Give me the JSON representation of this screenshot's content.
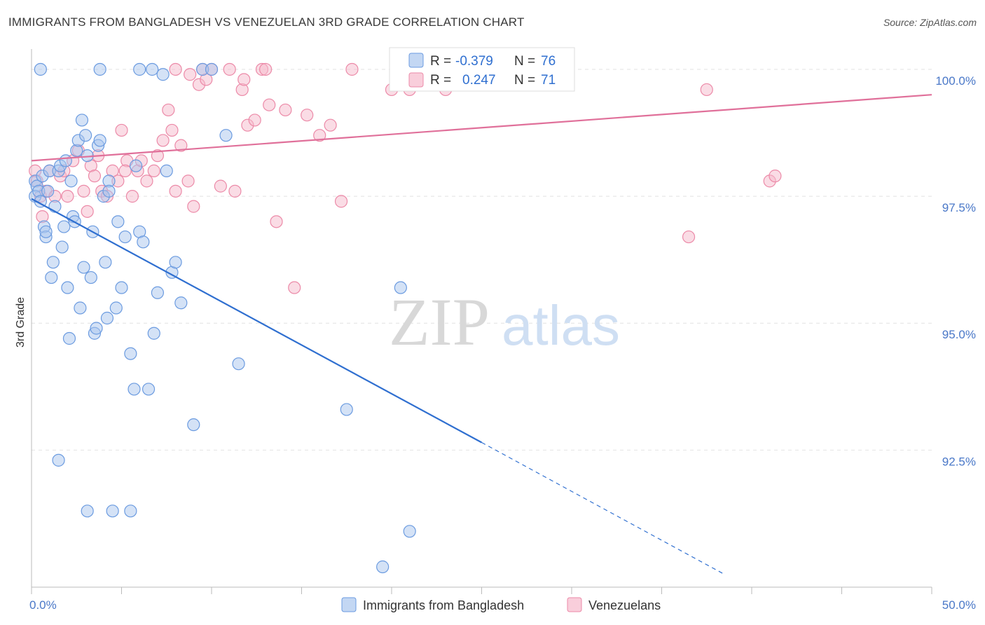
{
  "title": "IMMIGRANTS FROM BANGLADESH VS VENEZUELAN 3RD GRADE CORRELATION CHART",
  "source": "Source: ZipAtlas.com",
  "watermark": {
    "zip": "ZIP",
    "atlas": "atlas"
  },
  "colors": {
    "blue_fill": "#a9c6ee",
    "blue_stroke": "#6b9be0",
    "blue_line": "#2f6fd0",
    "pink_fill": "#f6b9cc",
    "pink_stroke": "#ec8aa8",
    "pink_line": "#e0709a",
    "accent_text": "#4a78c8"
  },
  "legend": {
    "r_label": "R =",
    "n_label": "N =",
    "rows": [
      {
        "r": "-0.379",
        "n": "76"
      },
      {
        "r": "0.247",
        "n": "71"
      }
    ]
  },
  "bottom_legend": [
    "Immigrants from Bangladesh",
    "Venezuelans"
  ],
  "chart_data": {
    "type": "scatter",
    "ylabel": "3rd Grade",
    "xlim": [
      0,
      50
    ],
    "ylim": [
      89.8,
      100.4
    ],
    "x_tick_labels": [
      "0.0%",
      "50.0%"
    ],
    "y_ticks": [
      {
        "value": 100.0,
        "label": "100.0%"
      },
      {
        "value": 97.5,
        "label": "97.5%"
      },
      {
        "value": 95.0,
        "label": "95.0%"
      },
      {
        "value": 92.5,
        "label": "92.5%"
      }
    ],
    "series": [
      {
        "name": "Immigrants from Bangladesh",
        "trend": {
          "x0": 0,
          "y0": 97.45,
          "x1": 25,
          "y1": 92.65,
          "dashed_to_x": 38.5,
          "dashed_to_y": 90.05
        },
        "points": [
          [
            0.2,
            97.8
          ],
          [
            0.3,
            97.7
          ],
          [
            0.2,
            97.5
          ],
          [
            0.4,
            97.6
          ],
          [
            0.5,
            97.4
          ],
          [
            0.6,
            97.9
          ],
          [
            0.7,
            96.9
          ],
          [
            0.8,
            96.7
          ],
          [
            0.9,
            97.6
          ],
          [
            1.0,
            98.0
          ],
          [
            0.8,
            96.8
          ],
          [
            1.1,
            95.9
          ],
          [
            1.2,
            96.2
          ],
          [
            1.3,
            97.3
          ],
          [
            1.5,
            98.0
          ],
          [
            1.6,
            98.1
          ],
          [
            1.7,
            96.5
          ],
          [
            1.8,
            96.9
          ],
          [
            1.9,
            98.2
          ],
          [
            2.0,
            95.7
          ],
          [
            2.1,
            94.7
          ],
          [
            2.2,
            97.8
          ],
          [
            2.3,
            97.1
          ],
          [
            2.5,
            98.4
          ],
          [
            2.6,
            98.6
          ],
          [
            2.7,
            95.3
          ],
          [
            2.8,
            99.0
          ],
          [
            2.9,
            96.1
          ],
          [
            3.0,
            98.7
          ],
          [
            3.1,
            98.3
          ],
          [
            3.3,
            95.9
          ],
          [
            3.4,
            96.8
          ],
          [
            3.5,
            94.8
          ],
          [
            3.6,
            94.9
          ],
          [
            3.7,
            98.5
          ],
          [
            3.8,
            98.6
          ],
          [
            4.0,
            97.5
          ],
          [
            4.1,
            96.2
          ],
          [
            4.2,
            95.1
          ],
          [
            4.3,
            97.8
          ],
          [
            4.5,
            91.3
          ],
          [
            4.7,
            95.3
          ],
          [
            4.8,
            97.0
          ],
          [
            5.0,
            95.7
          ],
          [
            5.2,
            96.7
          ],
          [
            5.5,
            94.4
          ],
          [
            5.7,
            93.7
          ],
          [
            5.8,
            98.1
          ],
          [
            6.0,
            96.8
          ],
          [
            6.2,
            96.6
          ],
          [
            6.5,
            93.7
          ],
          [
            6.8,
            94.8
          ],
          [
            7.0,
            95.6
          ],
          [
            7.5,
            98.0
          ],
          [
            7.8,
            96.0
          ],
          [
            8.0,
            96.2
          ],
          [
            8.3,
            95.4
          ],
          [
            9.0,
            93.0
          ],
          [
            9.5,
            100.0
          ],
          [
            10.0,
            100.0
          ],
          [
            10.8,
            98.7
          ],
          [
            11.5,
            94.2
          ],
          [
            3.8,
            100.0
          ],
          [
            6.0,
            100.0
          ],
          [
            6.7,
            100.0
          ],
          [
            7.3,
            99.9
          ],
          [
            17.5,
            93.3
          ],
          [
            21.0,
            90.9
          ],
          [
            19.5,
            90.2
          ],
          [
            0.5,
            100.0
          ],
          [
            1.5,
            92.3
          ],
          [
            3.1,
            91.3
          ],
          [
            5.5,
            91.3
          ],
          [
            20.5,
            95.7
          ],
          [
            4.3,
            97.6
          ],
          [
            2.4,
            97.0
          ]
        ]
      },
      {
        "name": "Venezuelans",
        "trend": {
          "x0": 0,
          "y0": 98.2,
          "x1": 50,
          "y1": 99.5
        },
        "points": [
          [
            0.2,
            98.0
          ],
          [
            0.3,
            97.8
          ],
          [
            0.5,
            97.5
          ],
          [
            0.6,
            97.1
          ],
          [
            0.8,
            97.6
          ],
          [
            1.0,
            98.0
          ],
          [
            1.3,
            97.5
          ],
          [
            1.6,
            97.9
          ],
          [
            1.8,
            98.0
          ],
          [
            2.0,
            97.5
          ],
          [
            2.3,
            98.2
          ],
          [
            2.6,
            98.4
          ],
          [
            2.9,
            97.6
          ],
          [
            3.1,
            97.2
          ],
          [
            3.3,
            98.1
          ],
          [
            3.5,
            97.9
          ],
          [
            3.7,
            98.3
          ],
          [
            3.9,
            97.6
          ],
          [
            4.2,
            97.5
          ],
          [
            4.5,
            98.0
          ],
          [
            4.8,
            97.8
          ],
          [
            5.0,
            98.8
          ],
          [
            5.3,
            98.2
          ],
          [
            5.6,
            97.5
          ],
          [
            5.9,
            98.0
          ],
          [
            6.1,
            98.2
          ],
          [
            6.4,
            97.8
          ],
          [
            6.8,
            98.0
          ],
          [
            7.0,
            98.3
          ],
          [
            7.3,
            98.6
          ],
          [
            7.6,
            99.2
          ],
          [
            7.8,
            98.8
          ],
          [
            8.0,
            97.6
          ],
          [
            8.3,
            98.5
          ],
          [
            8.7,
            97.8
          ],
          [
            9.0,
            97.3
          ],
          [
            9.3,
            99.7
          ],
          [
            9.7,
            99.8
          ],
          [
            10.0,
            100.0
          ],
          [
            10.5,
            97.7
          ],
          [
            11.0,
            100.0
          ],
          [
            11.3,
            97.6
          ],
          [
            11.7,
            99.6
          ],
          [
            12.0,
            98.9
          ],
          [
            12.4,
            99.0
          ],
          [
            12.8,
            100.0
          ],
          [
            13.2,
            99.3
          ],
          [
            13.6,
            97.0
          ],
          [
            14.1,
            99.2
          ],
          [
            14.6,
            95.7
          ],
          [
            15.3,
            99.1
          ],
          [
            16.0,
            98.7
          ],
          [
            16.6,
            98.9
          ],
          [
            17.2,
            97.4
          ],
          [
            17.8,
            100.0
          ],
          [
            8.0,
            100.0
          ],
          [
            8.8,
            99.9
          ],
          [
            9.5,
            100.0
          ],
          [
            11.8,
            99.8
          ],
          [
            13.0,
            100.0
          ],
          [
            20.0,
            99.6
          ],
          [
            21.0,
            99.6
          ],
          [
            22.2,
            100.0
          ],
          [
            23.0,
            99.6
          ],
          [
            24.0,
            99.8
          ],
          [
            24.5,
            100.0
          ],
          [
            36.5,
            96.7
          ],
          [
            37.5,
            99.6
          ],
          [
            41.0,
            97.8
          ],
          [
            41.3,
            97.9
          ],
          [
            5.2,
            98.0
          ]
        ]
      }
    ]
  }
}
